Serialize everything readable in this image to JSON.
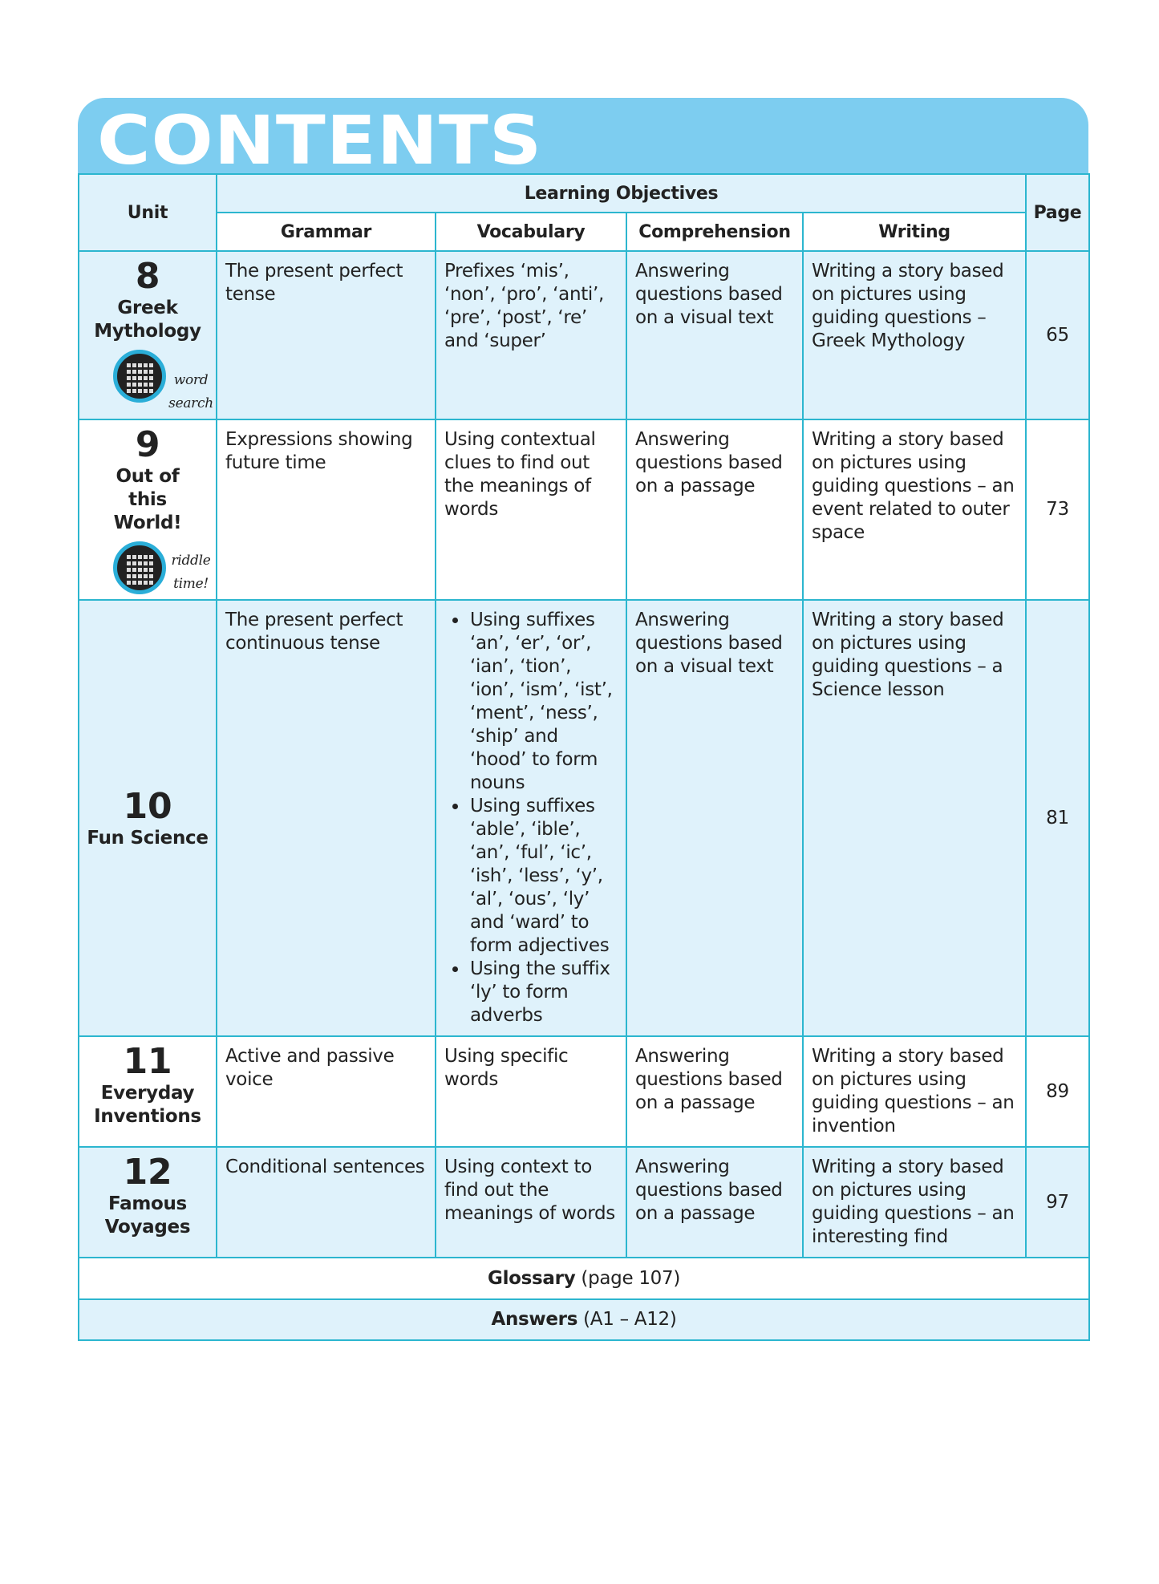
{
  "title": "CONTENTS",
  "headers": {
    "unit": "Unit",
    "learning_objectives": "Learning Objectives",
    "page": "Page",
    "grammar": "Grammar",
    "vocabulary": "Vocabulary",
    "comprehension": "Comprehension",
    "writing": "Writing"
  },
  "rows": [
    {
      "num": "8",
      "name": "Greek Mythology",
      "icon": "word-search-icon",
      "icon_label": "word search",
      "grammar": "The present perfect tense",
      "vocabulary": "Prefixes ‘mis’, ‘non’, ‘pro’, ‘anti’, ‘pre’, ‘post’, ‘re’ and ‘super’",
      "comprehension": "Answering questions based on a visual text",
      "writing": "Writing a story based on pictures using guiding questions – Greek Mythology",
      "page": "65"
    },
    {
      "num": "9",
      "name": "Out of this World!",
      "icon": "riddle-icon",
      "icon_label": "riddle time!",
      "grammar": "Expressions showing future time",
      "vocabulary": "Using contextual clues to find out the meanings of words",
      "comprehension": "Answering questions based on a passage",
      "writing": "Writing a story based on pictures using guiding questions – an event related to outer space",
      "page": "73"
    },
    {
      "num": "10",
      "name": "Fun Science",
      "grammar": "The present perfect continuous tense",
      "vocabulary_list": [
        "Using suffixes ‘an’, ‘er’, ‘or’, ‘ian’, ‘tion’, ‘ion’, ‘ism’, ‘ist’, ‘ment’, ‘ness’, ‘ship’ and ‘hood’ to form nouns",
        "Using suffixes ‘able’, ‘ible’, ‘an’, ‘ful’, ‘ic’, ‘ish’, ‘less’, ‘y’, ‘al’, ‘ous’, ‘ly’ and ‘ward’ to form adjectives",
        "Using the suffix ‘ly’ to form adverbs"
      ],
      "comprehension": "Answering questions based on a visual text",
      "writing": "Writing a story based on pictures using guiding questions – a Science lesson",
      "page": "81"
    },
    {
      "num": "11",
      "name": "Everyday Inventions",
      "grammar": "Active and passive voice",
      "vocabulary": "Using specific words",
      "comprehension": "Answering questions based on a passage",
      "writing": "Writing a story based on pictures using guiding questions – an invention",
      "page": "89"
    },
    {
      "num": "12",
      "name": "Famous Voyages",
      "grammar": "Conditional sentences",
      "vocabulary": "Using context to find out the meanings of words",
      "comprehension": "Answering questions based on a passage",
      "writing": "Writing a story based on pictures using guiding questions – an interesting find",
      "page": "97"
    }
  ],
  "glossary": {
    "label": "Glossary",
    "detail": "(page 107)"
  },
  "answers": {
    "label": "Answers",
    "detail": "(A1 – A12)"
  },
  "colors": {
    "title_bar": "#7dcdf0",
    "border": "#2cb6cf",
    "light_row": "#dff2fb"
  }
}
